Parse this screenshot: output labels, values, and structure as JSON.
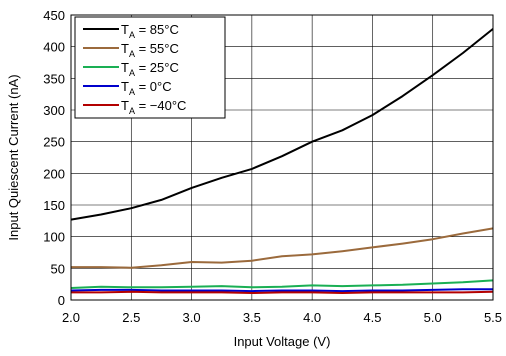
{
  "chart_data": {
    "type": "line",
    "title": "",
    "xlabel": "Input Voltage (V)",
    "ylabel": "Input Quiescent Current (nA)",
    "xlim": [
      2.0,
      5.5
    ],
    "ylim": [
      0,
      450
    ],
    "x_ticks": [
      "2.0",
      "2.5",
      "3.0",
      "3.5",
      "4.0",
      "4.5",
      "5.0",
      "5.5"
    ],
    "y_ticks": [
      "0",
      "50",
      "100",
      "150",
      "200",
      "250",
      "300",
      "350",
      "400",
      "450"
    ],
    "grid": true,
    "legend_position": "top-left",
    "series": [
      {
        "name_main": "T",
        "name_sub": "A",
        "name_rest": " = 85°C",
        "color": "#000000",
        "x": [
          2.0,
          2.25,
          2.5,
          2.75,
          3.0,
          3.25,
          3.5,
          3.75,
          4.0,
          4.25,
          4.5,
          4.75,
          5.0,
          5.25,
          5.5
        ],
        "y": [
          127,
          135,
          145,
          158,
          177,
          193,
          207,
          227,
          250,
          268,
          292,
          322,
          355,
          390,
          428
        ]
      },
      {
        "name_main": "T",
        "name_sub": "A",
        "name_rest": " = 55°C",
        "color": "#9b6a3c",
        "x": [
          2.0,
          2.25,
          2.5,
          2.75,
          3.0,
          3.25,
          3.5,
          3.75,
          4.0,
          4.25,
          4.5,
          4.75,
          5.0,
          5.25,
          5.5
        ],
        "y": [
          52,
          52,
          51,
          55,
          60,
          59,
          62,
          69,
          72,
          77,
          83,
          89,
          96,
          105,
          113
        ]
      },
      {
        "name_main": "T",
        "name_sub": "A",
        "name_rest": " = 25°C",
        "color": "#1aaf54",
        "x": [
          2.0,
          2.25,
          2.5,
          2.75,
          3.0,
          3.25,
          3.5,
          3.75,
          4.0,
          4.25,
          4.5,
          4.75,
          5.0,
          5.25,
          5.5
        ],
        "y": [
          19,
          21,
          20,
          20,
          21,
          22,
          20,
          21,
          23,
          22,
          23,
          24,
          26,
          28,
          31
        ]
      },
      {
        "name_main": "T",
        "name_sub": "A",
        "name_rest": " = 0°C",
        "color": "#0000cc",
        "x": [
          2.0,
          2.25,
          2.5,
          2.75,
          3.0,
          3.25,
          3.5,
          3.75,
          4.0,
          4.25,
          4.5,
          4.75,
          5.0,
          5.25,
          5.5
        ],
        "y": [
          15,
          16,
          16,
          15,
          15,
          15,
          14,
          15,
          15,
          14,
          15,
          15,
          16,
          17,
          17
        ]
      },
      {
        "name_main": "T",
        "name_sub": "A",
        "name_rest": " = −40°C",
        "color": "#b30000",
        "x": [
          2.0,
          2.25,
          2.5,
          2.75,
          3.0,
          3.25,
          3.5,
          3.75,
          4.0,
          4.25,
          4.5,
          4.75,
          5.0,
          5.25,
          5.5
        ],
        "y": [
          12,
          12,
          13,
          12,
          12,
          12,
          11,
          12,
          12,
          11,
          12,
          12,
          12,
          12,
          13
        ]
      }
    ]
  }
}
